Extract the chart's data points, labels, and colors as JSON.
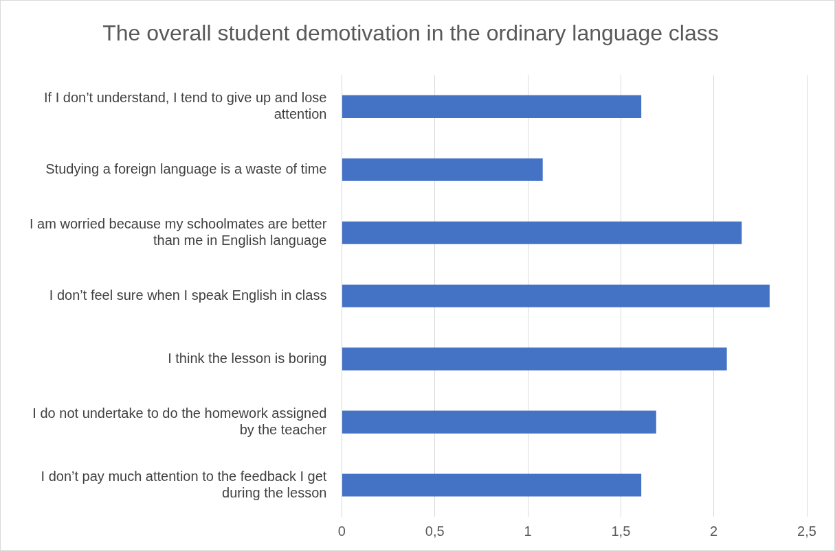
{
  "chart_data": {
    "type": "bar",
    "orientation": "horizontal",
    "title": "The overall student demotivation in the ordinary language class",
    "categories": [
      "If I don’t understand, I tend to give up and lose attention",
      "Studying a foreign language is a waste of time",
      "I am worried because my schoolmates are better than me in English language",
      "I don’t feel sure when I speak English in class",
      "I think the lesson is boring",
      "I do not undertake to do the homework assigned by the teacher",
      "I don’t pay much attention to the feedback I get during the lesson"
    ],
    "values": [
      1.61,
      1.08,
      2.15,
      2.3,
      2.07,
      1.69,
      1.61
    ],
    "color": "#4472c4",
    "xlim": [
      0,
      2.5
    ],
    "xticks": [
      0,
      {
        "value": 0.5,
        "label": "0,5"
      },
      1,
      {
        "value": 1.5,
        "label": "1,5"
      },
      2,
      {
        "value": 2.5,
        "label": "2,5"
      }
    ],
    "grid": "x",
    "legend": false
  }
}
